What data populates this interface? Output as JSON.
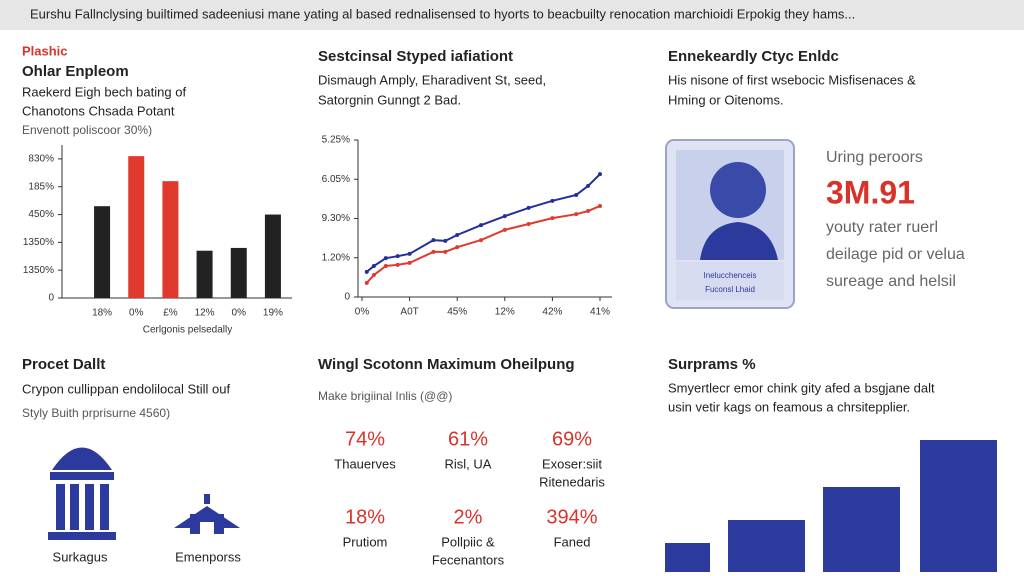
{
  "header": {
    "title": "Eurshu Fallnclysing builtimed sadeeniusi mane yating al based rednalisensed to hyorts to beacbuilty renocation marchioidi Erpokig they hams..."
  },
  "panels": [
    {
      "tag": "Plashic",
      "title": "Ohlar Enpleom",
      "lines": [
        "Raekerd Eigh bech bating of",
        "Chanotons Chsada Potant"
      ],
      "note": "Envenott poliscoor 30%)"
    },
    {
      "title": "Sestcinsal Styped iafiationt",
      "lines": [
        "Dismaugh Amply, Eharadivent St, seed,",
        "Satorgnin Gunngt 2 Bad."
      ]
    },
    {
      "title": "Ennekeardly Ctyc Enldc",
      "lines": [
        "His nisone of first wsebocic Misfisenaces &",
        "Hming or Oitenoms."
      ],
      "card": [
        "Inelucchenceis",
        "Fuconsl Lhaid"
      ],
      "stat_label": "Uring peroors",
      "stat": "3M.91",
      "stat_lines": [
        "youty rater ruerl",
        "deilage pid or velua",
        "sureage and helsil"
      ]
    },
    {
      "title": "Procet Dallt",
      "lines": [
        "Crypon cullippan endolilocal Still ouf"
      ],
      "note": "Styly Buith prprisurne 4560)",
      "icons": [
        "Surkagus",
        "Emenporss"
      ]
    },
    {
      "title": "Wingl Scotonn Maximum Oheilpung",
      "note": "Make brigiinal Inlis (@@)",
      "stats": [
        {
          "value": "74%",
          "label": [
            "Thauerves"
          ]
        },
        {
          "value": "61%",
          "label": [
            "Risl, UA"
          ]
        },
        {
          "value": "69%",
          "label": [
            "Exoser:siit",
            "Ritenedaris"
          ]
        },
        {
          "value": "18%",
          "label": [
            "Prutiom"
          ]
        },
        {
          "value": "2%",
          "label": [
            "Pollpiic &",
            "Fecenantors"
          ]
        },
        {
          "value": "394%",
          "label": [
            "Faned"
          ]
        }
      ]
    },
    {
      "title": "Surprams %",
      "lines": [
        "Smyertlecr emor chink gity afed a bsgjane dalt",
        "usin vetir kags on feamous a chrsitepplier."
      ]
    }
  ],
  "chart_data": [
    {
      "type": "bar",
      "categories": [
        "18%",
        "0%",
        "£%",
        "12%",
        "0%",
        "19%"
      ],
      "values": [
        3.3,
        5.1,
        4.2,
        1.7,
        1.8,
        3.0
      ],
      "colors": [
        "#222222",
        "#e03a2e",
        "#e03a2e",
        "#222222",
        "#222222",
        "#222222"
      ],
      "x_label": "Cerlgonis pelsedally",
      "ylim": [
        0,
        5.5
      ],
      "yticks": [
        {
          "value": 0,
          "label": "0"
        },
        {
          "value": 1,
          "label": "1350%"
        },
        {
          "value": 2,
          "label": "1350%"
        },
        {
          "value": 3,
          "label": "450%"
        },
        {
          "value": 4,
          "label": "185%"
        },
        {
          "value": 5,
          "label": "830%"
        }
      ]
    },
    {
      "type": "line",
      "x": [
        0.1,
        0.25,
        0.5,
        0.75,
        1,
        1.5,
        1.75,
        2,
        2.5,
        3,
        3.5,
        4,
        4.5,
        4.75,
        5
      ],
      "series": [
        {
          "color": "#23309a",
          "values": [
            0.64,
            0.79,
            0.99,
            1.04,
            1.1,
            1.45,
            1.43,
            1.58,
            1.83,
            2.06,
            2.27,
            2.45,
            2.6,
            2.83,
            3.13
          ]
        },
        {
          "color": "#e03a2e",
          "values": [
            0.36,
            0.56,
            0.79,
            0.82,
            0.87,
            1.15,
            1.15,
            1.27,
            1.45,
            1.71,
            1.86,
            2.01,
            2.11,
            2.19,
            2.32
          ]
        }
      ],
      "xlim": [
        0,
        5
      ],
      "xticks": [
        {
          "value": 0,
          "label": "0%"
        },
        {
          "value": 1,
          "label": "A0T"
        },
        {
          "value": 2,
          "label": "45%"
        },
        {
          "value": 3,
          "label": "12%"
        },
        {
          "value": 4,
          "label": "42%"
        },
        {
          "value": 5,
          "label": "41%"
        }
      ],
      "ylim": [
        0,
        4
      ],
      "yticks": [
        {
          "value": 0,
          "label": "0"
        },
        {
          "value": 1,
          "label": "1.20%"
        },
        {
          "value": 2,
          "label": "9.30%"
        },
        {
          "value": 3,
          "label": "6.05%"
        },
        {
          "value": 4,
          "label": "5.25%"
        }
      ]
    },
    {
      "type": "bar",
      "values": [
        29,
        52,
        85,
        132
      ],
      "color": "#2b3a9c"
    }
  ]
}
